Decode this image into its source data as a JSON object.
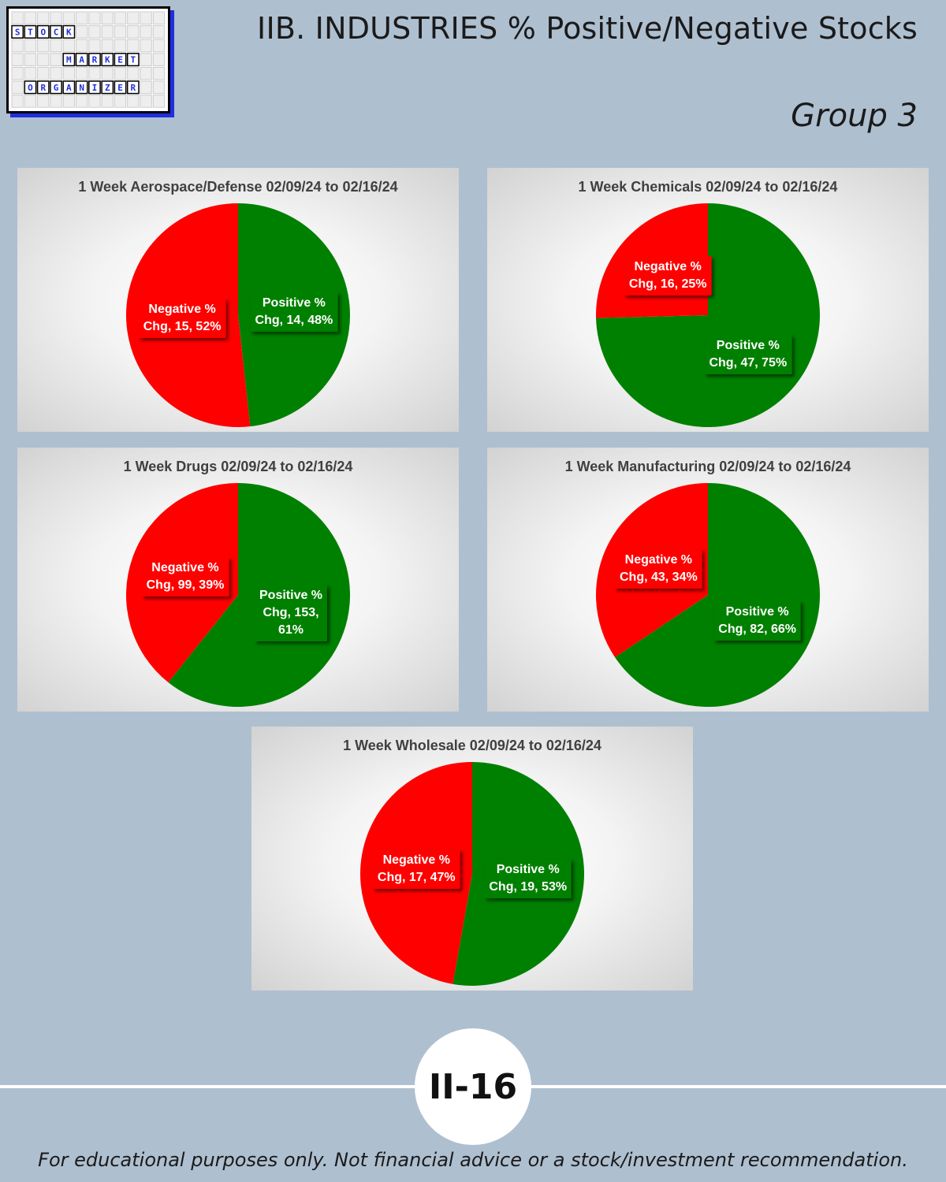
{
  "logo": {
    "row1": "STOCK",
    "row2": "MARKET",
    "row3": "ORGANIZER"
  },
  "header": {
    "title": "IIB. INDUSTRIES % Positive/Negative Stocks",
    "group": "Group 3"
  },
  "colors": {
    "negative": "#ff0000",
    "positive": "#008000",
    "background": "#aebfd0"
  },
  "chart_data": [
    {
      "type": "pie",
      "title": "1 Week Aerospace/Defense 02/09/24 to 02/16/24",
      "slices": [
        {
          "name": "Positive % Chg",
          "value": 14,
          "percent": 48,
          "label_lines": [
            "Positive %",
            "Chg, 14, 48%"
          ]
        },
        {
          "name": "Negative % Chg",
          "value": 15,
          "percent": 52,
          "label_lines": [
            "Negative %",
            "Chg, 15, 52%"
          ]
        }
      ]
    },
    {
      "type": "pie",
      "title": "1 Week Chemicals 02/09/24 to 02/16/24",
      "slices": [
        {
          "name": "Positive % Chg",
          "value": 47,
          "percent": 75,
          "label_lines": [
            "Positive %",
            "Chg, 47, 75%"
          ]
        },
        {
          "name": "Negative % Chg",
          "value": 16,
          "percent": 25,
          "label_lines": [
            "Negative %",
            "Chg, 16, 25%"
          ]
        }
      ]
    },
    {
      "type": "pie",
      "title": "1 Week Drugs 02/09/24 to 02/16/24",
      "slices": [
        {
          "name": "Positive % Chg",
          "value": 153,
          "percent": 61,
          "label_lines": [
            "Positive %",
            "Chg, 153,",
            "61%"
          ]
        },
        {
          "name": "Negative % Chg",
          "value": 99,
          "percent": 39,
          "label_lines": [
            "Negative %",
            "Chg, 99, 39%"
          ]
        }
      ]
    },
    {
      "type": "pie",
      "title": "1 Week Manufacturing 02/09/24 to 02/16/24",
      "slices": [
        {
          "name": "Positive % Chg",
          "value": 82,
          "percent": 66,
          "label_lines": [
            "Positive %",
            "Chg, 82, 66%"
          ]
        },
        {
          "name": "Negative % Chg",
          "value": 43,
          "percent": 34,
          "label_lines": [
            "Negative %",
            "Chg, 43, 34%"
          ]
        }
      ]
    },
    {
      "type": "pie",
      "title": "1 Week Wholesale 02/09/24 to 02/16/24",
      "slices": [
        {
          "name": "Positive % Chg",
          "value": 19,
          "percent": 53,
          "label_lines": [
            "Positive %",
            "Chg, 19, 53%"
          ]
        },
        {
          "name": "Negative % Chg",
          "value": 17,
          "percent": 47,
          "label_lines": [
            "Negative %",
            "Chg, 17, 47%"
          ]
        }
      ]
    }
  ],
  "footer": {
    "page_number": "II-16",
    "disclaimer": "For educational purposes only. Not financial advice or a stock/investment recommendation."
  }
}
